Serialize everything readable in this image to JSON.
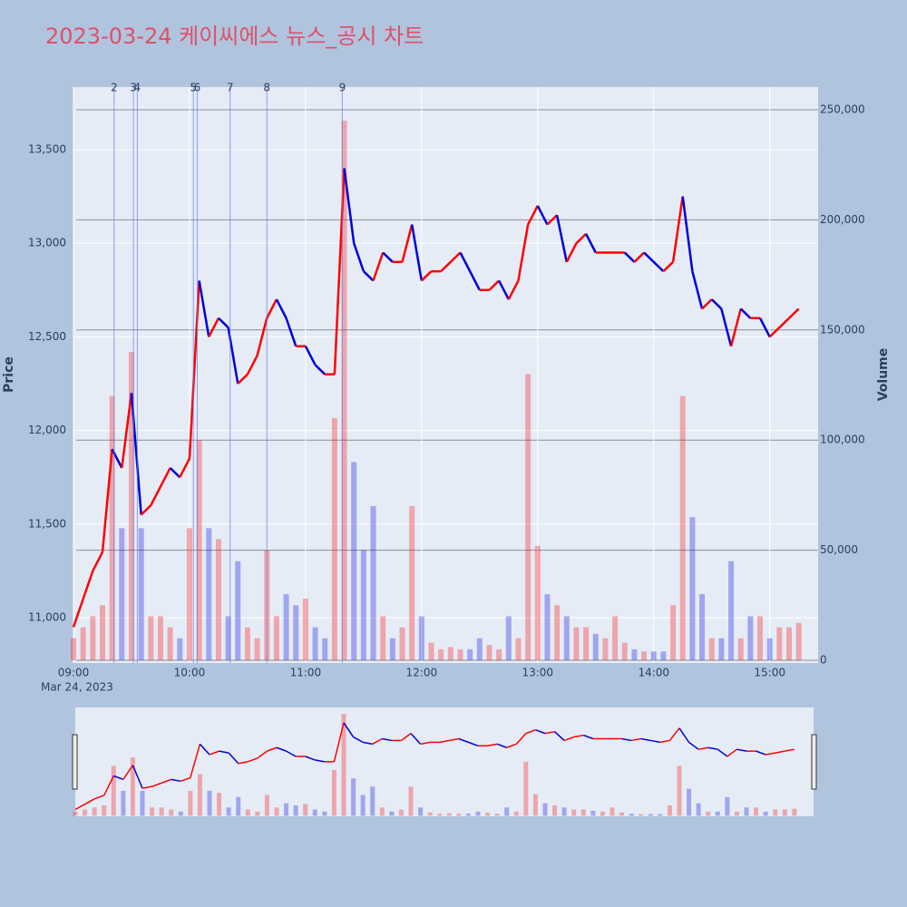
{
  "chart_data": {
    "type": "line",
    "title": "2023-03-24 케이씨에스 뉴스_공시 차트",
    "y_label": "Price",
    "y2_label": "Volume",
    "x_date_label": "Mar 24, 2023",
    "up_color": "#ff0000",
    "down_color": "#0000dd",
    "title_color": "#e0506a",
    "grid": true,
    "x": [
      "09:00",
      "09:05",
      "09:10",
      "09:15",
      "09:20",
      "09:25",
      "09:30",
      "09:35",
      "09:40",
      "09:45",
      "09:50",
      "09:55",
      "10:00",
      "10:05",
      "10:10",
      "10:15",
      "10:20",
      "10:25",
      "10:30",
      "10:35",
      "10:40",
      "10:45",
      "10:50",
      "10:55",
      "11:00",
      "11:05",
      "11:10",
      "11:15",
      "11:20",
      "11:25",
      "11:30",
      "11:35",
      "11:40",
      "11:45",
      "11:50",
      "11:55",
      "12:00",
      "12:05",
      "12:10",
      "12:15",
      "12:20",
      "12:25",
      "12:30",
      "12:35",
      "12:40",
      "12:45",
      "12:50",
      "12:55",
      "13:00",
      "13:05",
      "13:10",
      "13:15",
      "13:20",
      "13:25",
      "13:30",
      "13:35",
      "13:40",
      "13:45",
      "13:50",
      "13:55",
      "14:00",
      "14:05",
      "14:10",
      "14:15",
      "14:20",
      "14:25",
      "14:30",
      "14:35",
      "14:40",
      "14:45",
      "14:50",
      "14:55",
      "15:00",
      "15:05",
      "15:10",
      "15:15"
    ],
    "series": [
      {
        "values": [
          10950,
          11100,
          11250,
          11350,
          11900,
          11800,
          12200,
          11550,
          11600,
          11700,
          11800,
          11750,
          11850,
          12800,
          12500,
          12600,
          12550,
          12250,
          12300,
          12400,
          12600,
          12700,
          12600,
          12450,
          12450,
          12350,
          12300,
          12300,
          13400,
          13000,
          12850,
          12800,
          12950,
          12900,
          12900,
          13100,
          12800,
          12850,
          12850,
          12900,
          12950,
          12850,
          12750,
          12750,
          12800,
          12700,
          12800,
          13100,
          13200,
          13100,
          13150,
          12900,
          13000,
          13050,
          12950,
          12950,
          12950,
          12950,
          12900,
          12950,
          12900,
          12850,
          12900,
          13250,
          12850,
          12650,
          12700,
          12650,
          12450,
          12650,
          12600,
          12600,
          12500,
          12550,
          12600,
          12650
        ]
      },
      {
        "axis": "y2",
        "values": [
          10000,
          15000,
          20000,
          25000,
          120000,
          60000,
          140000,
          60000,
          20000,
          20000,
          15000,
          10000,
          60000,
          100000,
          60000,
          55000,
          20000,
          45000,
          15000,
          10000,
          50000,
          20000,
          30000,
          25000,
          28000,
          15000,
          10000,
          110000,
          245000,
          90000,
          50000,
          70000,
          20000,
          10000,
          15000,
          70000,
          20000,
          8000,
          5000,
          6000,
          5000,
          5000,
          10000,
          7000,
          5000,
          20000,
          10000,
          130000,
          52000,
          30000,
          25000,
          20000,
          15000,
          15000,
          12000,
          10000,
          20000,
          8000,
          5000,
          4000,
          4000,
          4000,
          25000,
          120000,
          65000,
          30000,
          10000,
          10000,
          45000,
          10000,
          20000,
          20000,
          10000,
          15000,
          15000,
          17000
        ]
      }
    ],
    "events": [
      {
        "x": "09:21",
        "label": "2"
      },
      {
        "x": "09:31",
        "label": "3"
      },
      {
        "x": "09:33",
        "label": "4"
      },
      {
        "x": "10:02",
        "label": "5"
      },
      {
        "x": "10:04",
        "label": "6"
      },
      {
        "x": "10:21",
        "label": "7"
      },
      {
        "x": "10:40",
        "label": "8"
      },
      {
        "x": "11:19",
        "label": "9"
      }
    ],
    "event_color": "#6a7fe0",
    "xlim": [
      "09:00",
      "15:25"
    ],
    "xticks": [
      "09:00",
      "10:00",
      "11:00",
      "12:00",
      "13:00",
      "14:00",
      "15:00"
    ],
    "ylim": [
      10758,
      13834
    ],
    "yticks": [
      {
        "value": 11000,
        "label": "11,000"
      },
      {
        "value": 11500,
        "label": "11,500"
      },
      {
        "value": 12000,
        "label": "12,000"
      },
      {
        "value": 12500,
        "label": "12,500"
      },
      {
        "value": 13000,
        "label": "13,000"
      },
      {
        "value": 13500,
        "label": "13,500"
      }
    ],
    "y2lim": [
      -1236,
      260300
    ],
    "y2ticks": [
      0,
      {
        "value": 50000,
        "label": "50,000"
      },
      {
        "value": 100000,
        "label": "100,000"
      },
      {
        "value": 150000,
        "label": "150,000"
      },
      {
        "value": 200000,
        "label": "200,000"
      },
      {
        "value": 250000,
        "label": "250,000"
      }
    ]
  }
}
